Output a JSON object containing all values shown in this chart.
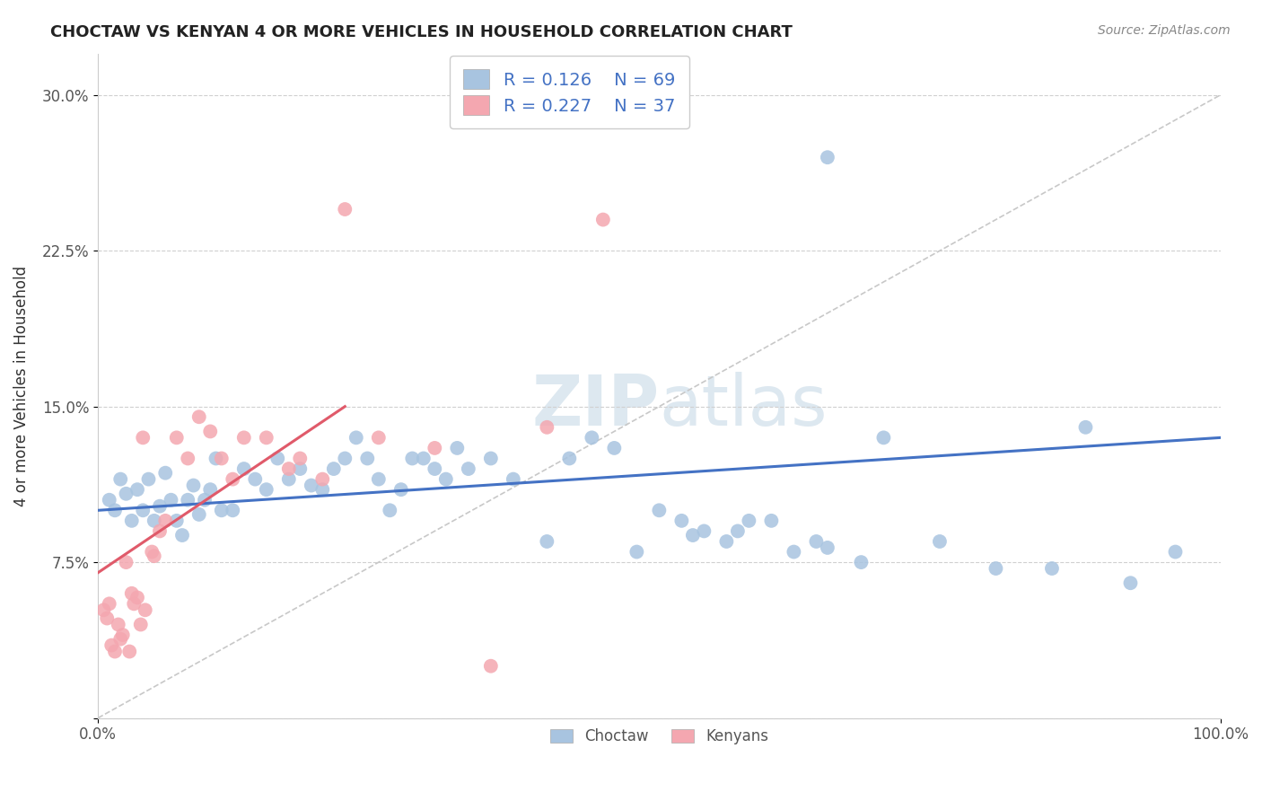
{
  "title": "CHOCTAW VS KENYAN 4 OR MORE VEHICLES IN HOUSEHOLD CORRELATION CHART",
  "source": "Source: ZipAtlas.com",
  "ylabel": "4 or more Vehicles in Household",
  "xlim": [
    0.0,
    100.0
  ],
  "ylim": [
    0.0,
    32.0
  ],
  "yticks": [
    0.0,
    7.5,
    15.0,
    22.5,
    30.0
  ],
  "legend_r1": "R = 0.126",
  "legend_n1": "N = 69",
  "legend_r2": "R = 0.227",
  "legend_n2": "N = 37",
  "choctaw_color": "#a8c4e0",
  "kenyan_color": "#f4a7b0",
  "trend_choctaw_color": "#4472c4",
  "trend_kenyan_color": "#e05a6a",
  "diagonal_color": "#c8c8c8",
  "background_color": "#ffffff",
  "choctaw_x": [
    1.0,
    1.5,
    2.0,
    2.5,
    3.0,
    3.5,
    4.0,
    4.5,
    5.0,
    5.5,
    6.0,
    6.5,
    7.0,
    7.5,
    8.0,
    8.5,
    9.0,
    9.5,
    10.0,
    10.5,
    11.0,
    12.0,
    13.0,
    14.0,
    15.0,
    16.0,
    17.0,
    18.0,
    19.0,
    20.0,
    21.0,
    22.0,
    23.0,
    24.0,
    25.0,
    26.0,
    27.0,
    28.0,
    29.0,
    30.0,
    31.0,
    32.0,
    33.0,
    35.0,
    37.0,
    40.0,
    42.0,
    44.0,
    46.0,
    48.0,
    50.0,
    52.0,
    53.0,
    54.0,
    56.0,
    57.0,
    58.0,
    60.0,
    62.0,
    64.0,
    65.0,
    68.0,
    70.0,
    75.0,
    80.0,
    85.0,
    88.0,
    92.0,
    96.0
  ],
  "choctaw_y": [
    10.5,
    10.0,
    11.5,
    10.8,
    9.5,
    11.0,
    10.0,
    11.5,
    9.5,
    10.2,
    11.8,
    10.5,
    9.5,
    8.8,
    10.5,
    11.2,
    9.8,
    10.5,
    11.0,
    12.5,
    10.0,
    10.0,
    12.0,
    11.5,
    11.0,
    12.5,
    11.5,
    12.0,
    11.2,
    11.0,
    12.0,
    12.5,
    13.5,
    12.5,
    11.5,
    10.0,
    11.0,
    12.5,
    12.5,
    12.0,
    11.5,
    13.0,
    12.0,
    12.5,
    11.5,
    8.5,
    12.5,
    13.5,
    13.0,
    8.0,
    10.0,
    9.5,
    8.8,
    9.0,
    8.5,
    9.0,
    9.5,
    9.5,
    8.0,
    8.5,
    8.2,
    7.5,
    13.5,
    8.5,
    7.2,
    7.2,
    14.0,
    6.5,
    8.0
  ],
  "kenyan_x": [
    0.5,
    0.8,
    1.0,
    1.2,
    1.5,
    1.8,
    2.0,
    2.2,
    2.5,
    2.8,
    3.0,
    3.2,
    3.5,
    3.8,
    4.0,
    4.2,
    4.8,
    5.0,
    5.5,
    6.0,
    7.0,
    8.0,
    9.0,
    10.0,
    11.0,
    12.0,
    13.0,
    15.0,
    17.0,
    18.0,
    20.0,
    22.0,
    25.0,
    30.0,
    35.0,
    40.0,
    45.0
  ],
  "kenyan_y": [
    5.2,
    4.8,
    5.5,
    3.5,
    3.2,
    4.5,
    3.8,
    4.0,
    7.5,
    3.2,
    6.0,
    5.5,
    5.8,
    4.5,
    13.5,
    5.2,
    8.0,
    7.8,
    9.0,
    9.5,
    13.5,
    12.5,
    14.5,
    13.8,
    12.5,
    11.5,
    13.5,
    13.5,
    12.0,
    12.5,
    11.5,
    24.5,
    13.5,
    13.0,
    2.5,
    14.0,
    24.0
  ],
  "choctaw_outlier_x": 65.0,
  "choctaw_outlier_y": 27.0,
  "trend_choctaw_x0": 0.0,
  "trend_choctaw_y0": 10.0,
  "trend_choctaw_x1": 100.0,
  "trend_choctaw_y1": 13.5,
  "trend_kenyan_x0": 0.0,
  "trend_kenyan_y0": 7.0,
  "trend_kenyan_x1": 22.0,
  "trend_kenyan_y1": 15.0
}
